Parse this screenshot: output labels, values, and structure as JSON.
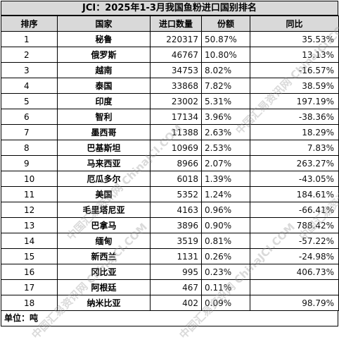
{
  "title": "JCI：2025年1-3月我国鱼粉进口国别排名",
  "headers": {
    "rank": "排序",
    "country": "国家",
    "import_qty": "进口数量",
    "share": "份额",
    "yoy": "同比"
  },
  "rows": [
    {
      "rank": "1",
      "country": "秘鲁",
      "qty": "220317",
      "share": "50.87%",
      "yoy": "35.53%"
    },
    {
      "rank": "2",
      "country": "俄罗斯",
      "qty": "46767",
      "share": "10.80%",
      "yoy": "13.13%"
    },
    {
      "rank": "3",
      "country": "越南",
      "qty": "34753",
      "share": "8.02%",
      "yoy": "-16.57%"
    },
    {
      "rank": "4",
      "country": "泰国",
      "qty": "33868",
      "share": "7.82%",
      "yoy": "38.59%"
    },
    {
      "rank": "5",
      "country": "印度",
      "qty": "23002",
      "share": "5.31%",
      "yoy": "197.19%"
    },
    {
      "rank": "6",
      "country": "智利",
      "qty": "17134",
      "share": "3.96%",
      "yoy": "-38.36%"
    },
    {
      "rank": "7",
      "country": "墨西哥",
      "qty": "11388",
      "share": "2.63%",
      "yoy": "18.29%"
    },
    {
      "rank": "8",
      "country": "巴基斯坦",
      "qty": "10969",
      "share": "2.53%",
      "yoy": "7.83%"
    },
    {
      "rank": "9",
      "country": "马来西亚",
      "qty": "8966",
      "share": "2.07%",
      "yoy": "263.27%"
    },
    {
      "rank": "10",
      "country": "厄瓜多尔",
      "qty": "6018",
      "share": "1.39%",
      "yoy": "-43.05%"
    },
    {
      "rank": "11",
      "country": "美国",
      "qty": "5352",
      "share": "1.24%",
      "yoy": "184.61%"
    },
    {
      "rank": "12",
      "country": "毛里塔尼亚",
      "qty": "4163",
      "share": "0.96%",
      "yoy": "-66.41%"
    },
    {
      "rank": "13",
      "country": "巴拿马",
      "qty": "3896",
      "share": "0.90%",
      "yoy": "788.42%"
    },
    {
      "rank": "14",
      "country": "缅甸",
      "qty": "3519",
      "share": "0.81%",
      "yoy": "-57.22%"
    },
    {
      "rank": "15",
      "country": "新西兰",
      "qty": "1131",
      "share": "0.26%",
      "yoy": "-24.98%"
    },
    {
      "rank": "16",
      "country": "冈比亚",
      "qty": "995",
      "share": "0.23%",
      "yoy": "406.73%"
    },
    {
      "rank": "17",
      "country": "阿根廷",
      "qty": "467",
      "share": "0.11%",
      "yoy": ""
    },
    {
      "rank": "18",
      "country": "纳米比亚",
      "qty": "402",
      "share": "0.09%",
      "yoy": "98.79%"
    }
  ],
  "unit_label": "单位：吨",
  "watermark": "中国汇易资讯网 ChinaJCI.COM"
}
